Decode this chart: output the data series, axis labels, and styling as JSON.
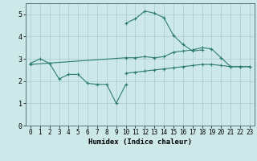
{
  "xlabel": "Humidex (Indice chaleur)",
  "x": [
    0,
    1,
    2,
    3,
    4,
    5,
    6,
    7,
    8,
    9,
    10,
    11,
    12,
    13,
    14,
    15,
    16,
    17,
    18,
    19,
    20,
    21,
    22,
    23
  ],
  "line1_x": [
    0,
    1,
    2,
    3,
    4,
    5,
    6,
    7,
    8,
    9,
    10
  ],
  "line1_y": [
    2.8,
    3.0,
    2.8,
    2.1,
    2.3,
    2.3,
    1.9,
    1.85,
    1.85,
    1.0,
    1.85
  ],
  "line2_x": [
    0,
    10,
    11,
    12,
    13,
    14,
    15,
    16,
    17,
    18,
    19,
    20,
    21,
    22,
    23
  ],
  "line2_y": [
    2.75,
    3.05,
    3.05,
    3.1,
    3.05,
    3.1,
    3.3,
    3.35,
    3.4,
    3.5,
    3.45,
    3.05,
    2.65,
    2.65,
    2.65
  ],
  "line_peak_x": [
    10,
    11,
    12,
    13,
    14,
    15,
    16,
    17,
    18
  ],
  "line_peak_y": [
    4.6,
    4.8,
    5.15,
    5.05,
    4.85,
    4.05,
    3.65,
    3.35,
    3.4
  ],
  "line_bottom_x": [
    10,
    11,
    12,
    13,
    14,
    15,
    16,
    17,
    18,
    19,
    20,
    21,
    22,
    23
  ],
  "line_bottom_y": [
    2.35,
    2.4,
    2.45,
    2.5,
    2.55,
    2.6,
    2.65,
    2.7,
    2.75,
    2.75,
    2.7,
    2.65,
    2.65,
    2.65
  ],
  "color": "#2e7d72",
  "bg_color": "#cce8e8",
  "grid_color": "#aacccc",
  "ylim": [
    0,
    5.5
  ],
  "xlim": [
    -0.5,
    23.5
  ]
}
